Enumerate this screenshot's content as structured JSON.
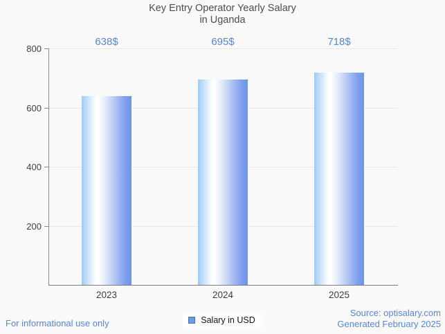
{
  "title": {
    "line1": "Key Entry Operator Yearly Salary",
    "line2": "in Uganda"
  },
  "chart_data": {
    "type": "bar",
    "title": "Key Entry Operator Yearly Salary in Uganda",
    "categories": [
      "2023",
      "2024",
      "2025"
    ],
    "values": [
      638,
      695,
      718
    ],
    "value_labels": [
      "638$",
      "695$",
      "718$"
    ],
    "xlabel": "",
    "ylabel": "",
    "ylim": [
      0,
      800
    ],
    "yticks": [
      200,
      400,
      600,
      800
    ],
    "grid": true,
    "legend_position": "bottom",
    "legend_entries": [
      "Salary in USD"
    ]
  },
  "legend": {
    "label": "Salary in USD"
  },
  "footer": {
    "left": "For informational use only",
    "source": "Source: optisalary.com",
    "generated": "Generated February 2025"
  },
  "colors": {
    "background": "#fafafa",
    "title_text": "#4c4c4c",
    "axis_text": "#404040",
    "accent_blue": "#5686d7",
    "gridline": "#e8e8e8",
    "axis_line": "#828282",
    "bar_edge_left": "#9fc9f3",
    "bar_highlight": "#ffffff",
    "bar_edge_right": "#6e94e7",
    "legend_swatch_fill": "#6d9ce5",
    "legend_swatch_border": "#4e71aa"
  }
}
